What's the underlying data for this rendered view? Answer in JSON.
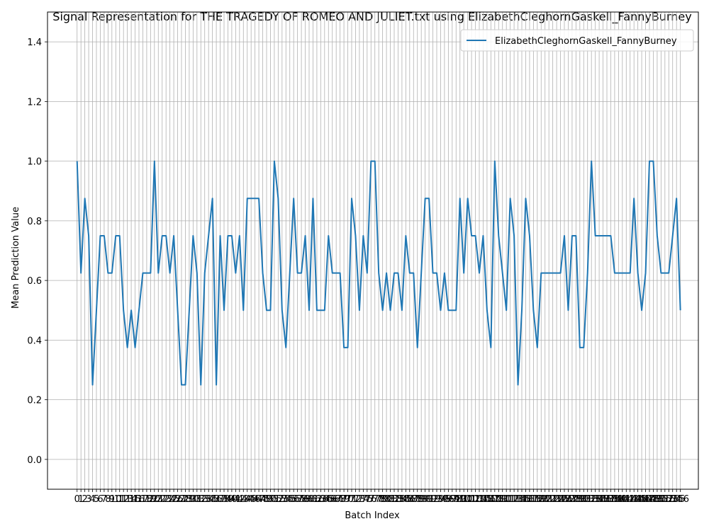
{
  "chart_data": {
    "type": "line",
    "title": "Signal Representation for THE TRAGEDY OF ROMEO AND JULIET.txt using ElizabethCleghornGaskell_FannyBurney",
    "xlabel": "Batch Index",
    "ylabel": "Mean Prediction Value",
    "ylim": [
      -0.1,
      1.5
    ],
    "xlim": [
      -7.65,
      160.65
    ],
    "yticks": [
      0.0,
      0.2,
      0.4,
      0.6,
      0.8,
      1.0,
      1.2,
      1.4
    ],
    "ytick_labels": [
      "0.0",
      "0.2",
      "0.4",
      "0.6",
      "0.8",
      "1.0",
      "1.2",
      "1.4"
    ],
    "grid": true,
    "legend_position": "upper right",
    "series": [
      {
        "name": "ElizabethCleghornGaskell_FannyBurney",
        "color": "#1f77b4",
        "x_start": 0,
        "values": [
          1.0,
          0.625,
          0.875,
          0.75,
          0.25,
          0.5,
          0.75,
          0.75,
          0.625,
          0.625,
          0.75,
          0.75,
          0.5,
          0.375,
          0.5,
          0.375,
          0.5,
          0.625,
          0.625,
          0.625,
          1.0,
          0.625,
          0.75,
          0.75,
          0.625,
          0.75,
          0.5,
          0.25,
          0.25,
          0.5,
          0.75,
          0.625,
          0.25,
          0.625,
          0.75,
          0.875,
          0.25,
          0.75,
          0.5,
          0.75,
          0.75,
          0.625,
          0.75,
          0.5,
          0.875,
          0.875,
          0.875,
          0.875,
          0.625,
          0.5,
          0.5,
          1.0,
          0.875,
          0.5,
          0.375,
          0.625,
          0.875,
          0.625,
          0.625,
          0.75,
          0.5,
          0.875,
          0.5,
          0.5,
          0.5,
          0.75,
          0.625,
          0.625,
          0.625,
          0.375,
          0.375,
          0.875,
          0.75,
          0.5,
          0.75,
          0.625,
          1.0,
          1.0,
          0.625,
          0.5,
          0.625,
          0.5,
          0.625,
          0.625,
          0.5,
          0.75,
          0.625,
          0.625,
          0.375,
          0.625,
          0.875,
          0.875,
          0.625,
          0.625,
          0.5,
          0.625,
          0.5,
          0.5,
          0.5,
          0.875,
          0.625,
          0.875,
          0.75,
          0.75,
          0.625,
          0.75,
          0.5,
          0.375,
          1.0,
          0.75,
          0.625,
          0.5,
          0.875,
          0.75,
          0.25,
          0.5,
          0.875,
          0.75,
          0.5,
          0.375,
          0.625,
          0.625,
          0.625,
          0.625,
          0.625,
          0.625,
          0.75,
          0.5,
          0.75,
          0.75,
          0.375,
          0.375,
          0.625,
          1.0,
          0.75,
          0.75,
          0.75,
          0.75,
          0.75,
          0.625,
          0.625,
          0.625,
          0.625,
          0.625,
          0.875,
          0.625,
          0.5,
          0.625,
          1.0,
          1.0,
          0.75,
          0.625,
          0.625,
          0.625,
          0.75,
          0.875,
          0.5
        ]
      }
    ]
  }
}
